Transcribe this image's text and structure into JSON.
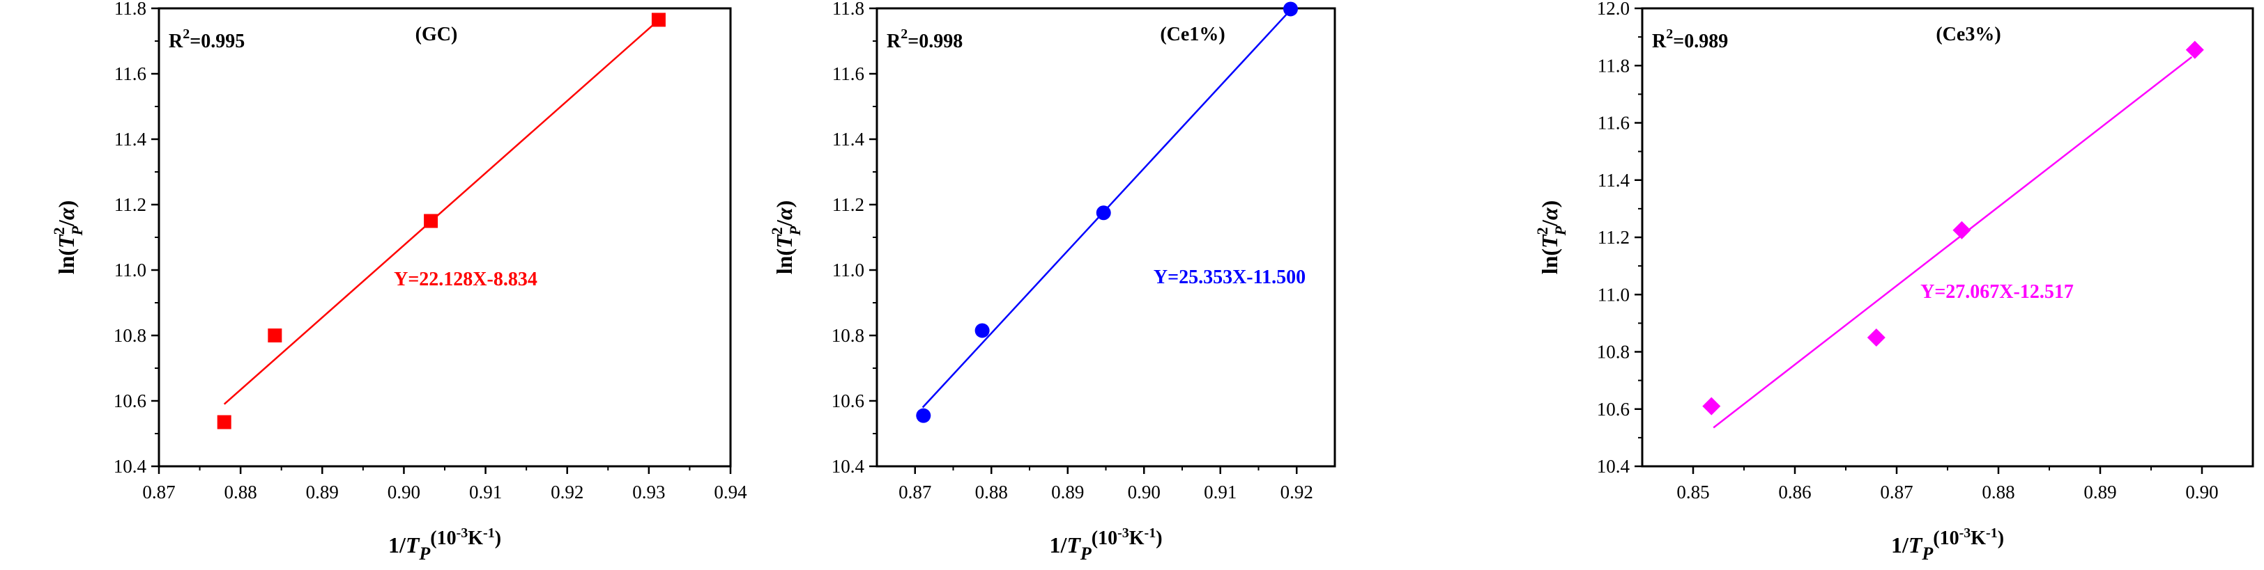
{
  "chart_data": [
    {
      "type": "scatter",
      "title": "(GC)",
      "xlabel": "1/T_P(10^-3K^-1)",
      "ylabel": "ln(T_P^2/α)",
      "xlim": [
        0.87,
        0.94
      ],
      "ylim": [
        10.4,
        11.8
      ],
      "xticks": [
        0.87,
        0.88,
        0.89,
        0.9,
        0.91,
        0.92,
        0.93,
        0.94
      ],
      "yticks": [
        10.4,
        10.6,
        10.8,
        11.0,
        11.2,
        11.4,
        11.6,
        11.8
      ],
      "marker": "square",
      "color": "#ff0000",
      "points": [
        {
          "x": 0.878,
          "y": 10.535
        },
        {
          "x": 0.8842,
          "y": 10.8
        },
        {
          "x": 0.9033,
          "y": 11.15
        },
        {
          "x": 0.9312,
          "y": 11.765
        }
      ],
      "fit": {
        "x": [
          0.878,
          0.931
        ],
        "y": [
          10.59,
          11.76
        ]
      },
      "r2_label": "R",
      "r2_value": "=0.995",
      "equation": "Y=22.128X-8.834"
    },
    {
      "type": "scatter",
      "title": "(Ce1%)",
      "xlabel": "1/T_P(10^-3K^-1)",
      "ylabel": "ln(T_P^2/α)",
      "xlim": [
        0.865,
        0.925
      ],
      "ylim": [
        10.4,
        11.8
      ],
      "xticks": [
        0.87,
        0.88,
        0.89,
        0.9,
        0.91,
        0.92
      ],
      "yticks": [
        10.4,
        10.6,
        10.8,
        11.0,
        11.2,
        11.4,
        11.6,
        11.8
      ],
      "marker": "circle",
      "color": "#0000ff",
      "points": [
        {
          "x": 0.8711,
          "y": 10.555
        },
        {
          "x": 0.8788,
          "y": 10.815
        },
        {
          "x": 0.8947,
          "y": 11.175
        },
        {
          "x": 0.9192,
          "y": 11.798
        }
      ],
      "fit": {
        "x": [
          0.871,
          0.919
        ],
        "y": [
          10.58,
          11.79
        ]
      },
      "r2_label": "R",
      "r2_value": "=0.998",
      "equation": "Y=25.353X-11.500"
    },
    {
      "type": "scatter",
      "title": "(Ce3%)",
      "xlabel": "1/T_P(10^-3K^-1)",
      "ylabel": "ln(T_P^2/α)",
      "xlim": [
        0.845,
        0.905
      ],
      "ylim": [
        10.4,
        12.0
      ],
      "xticks": [
        0.85,
        0.86,
        0.87,
        0.88,
        0.89,
        0.9
      ],
      "yticks": [
        10.4,
        10.6,
        10.8,
        11.0,
        11.2,
        11.4,
        11.6,
        11.8,
        12.0
      ],
      "marker": "diamond",
      "color": "#ff00ff",
      "points": [
        {
          "x": 0.8518,
          "y": 10.61
        },
        {
          "x": 0.868,
          "y": 10.85
        },
        {
          "x": 0.8764,
          "y": 11.225
        },
        {
          "x": 0.8993,
          "y": 11.855
        }
      ],
      "fit": {
        "x": [
          0.852,
          0.899
        ],
        "y": [
          10.535,
          11.83
        ]
      },
      "r2_label": "R",
      "r2_value": "=0.989",
      "equation": "Y=27.067X-12.517"
    }
  ],
  "tick_format_digits": 2,
  "ytick_format_digits": 1
}
